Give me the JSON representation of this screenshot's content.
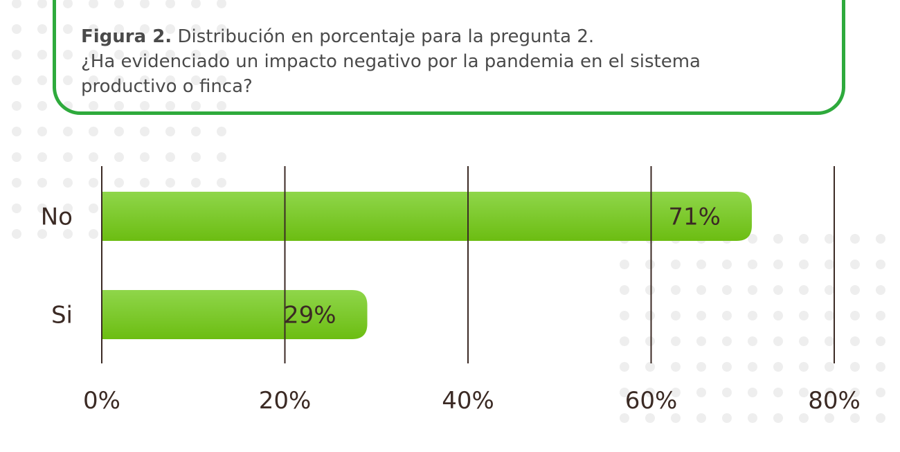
{
  "caption": {
    "figure_label": "Figura 2.",
    "line1": "Distribución en porcentaje para la pregunta 2.",
    "line2": "¿Ha evidenciado un impacto negativo por la pandemia en el sistema",
    "line3": "productivo o finca?"
  },
  "colors": {
    "bar_top": "#8fd64a",
    "bar_bottom": "#6cbd12",
    "gridline": "#3b2a24",
    "frame": "#2eaa3c",
    "dots": "#eeeeee"
  },
  "chart_data": {
    "type": "bar",
    "orientation": "horizontal",
    "categories": [
      "No",
      "Si"
    ],
    "values": [
      71,
      29
    ],
    "value_labels": [
      "71%",
      "29%"
    ],
    "xlim": [
      0,
      80
    ],
    "ticks": [
      0,
      20,
      40,
      60,
      80
    ],
    "tick_labels": [
      "0%",
      "20%",
      "40%",
      "60%",
      "80%"
    ],
    "grid": "vertical",
    "legend": "none"
  }
}
